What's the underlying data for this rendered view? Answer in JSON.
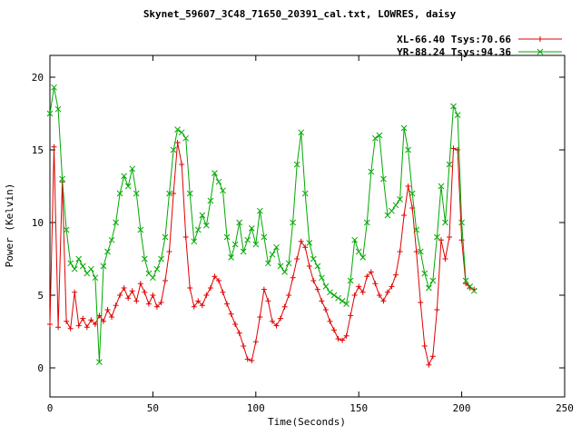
{
  "window": {
    "background": "#ffffff"
  },
  "chart_data": {
    "type": "line",
    "title": "Skynet_59607_3C48_71650_20391_cal.txt, LOWRES, daisy",
    "xlabel": "Time(Seconds)",
    "ylabel": "Power (Kelvin)",
    "xlim": [
      0,
      250
    ],
    "ylim": [
      -2,
      21.5
    ],
    "xticks": [
      0,
      50,
      100,
      150,
      200,
      250
    ],
    "yticks": [
      0,
      5,
      10,
      15,
      20
    ],
    "grid": false,
    "legend_position": "top-right-outside",
    "x": [
      0,
      2,
      4,
      6,
      8,
      10,
      12,
      14,
      16,
      18,
      20,
      22,
      24,
      26,
      28,
      30,
      32,
      34,
      36,
      38,
      40,
      42,
      44,
      46,
      48,
      50,
      52,
      54,
      56,
      58,
      60,
      62,
      64,
      66,
      68,
      70,
      72,
      74,
      76,
      78,
      80,
      82,
      84,
      86,
      88,
      90,
      92,
      94,
      96,
      98,
      100,
      102,
      104,
      106,
      108,
      110,
      112,
      114,
      116,
      118,
      120,
      122,
      124,
      126,
      128,
      130,
      132,
      134,
      136,
      138,
      140,
      142,
      144,
      146,
      148,
      150,
      152,
      154,
      156,
      158,
      160,
      162,
      164,
      166,
      168,
      170,
      172,
      174,
      176,
      178,
      180,
      182,
      184,
      186,
      188,
      190,
      192,
      194,
      196,
      198,
      200,
      202,
      204,
      206
    ],
    "series": [
      {
        "name": "XL-66.40 Tsys:70.66",
        "color": "#e00000",
        "marker": "plus",
        "values": [
          3.0,
          15.2,
          2.8,
          12.8,
          3.2,
          2.7,
          5.2,
          2.9,
          3.4,
          2.8,
          3.3,
          3.0,
          3.6,
          3.2,
          4.0,
          3.5,
          4.3,
          5.0,
          5.5,
          4.8,
          5.3,
          4.6,
          5.8,
          5.2,
          4.4,
          5.0,
          4.2,
          4.5,
          6.0,
          8.0,
          12.0,
          15.5,
          14.0,
          9.0,
          5.5,
          4.2,
          4.6,
          4.3,
          5.0,
          5.5,
          6.3,
          6.0,
          5.2,
          4.4,
          3.7,
          3.0,
          2.4,
          1.5,
          0.6,
          0.5,
          1.8,
          3.5,
          5.4,
          4.6,
          3.2,
          2.9,
          3.4,
          4.2,
          5.0,
          6.2,
          7.5,
          8.7,
          8.3,
          7.0,
          6.0,
          5.4,
          4.6,
          4.0,
          3.2,
          2.6,
          2.0,
          1.9,
          2.2,
          3.6,
          5.0,
          5.6,
          5.2,
          6.3,
          6.6,
          5.8,
          5.0,
          4.6,
          5.2,
          5.6,
          6.4,
          8.0,
          10.5,
          12.5,
          11.0,
          8.0,
          4.5,
          1.5,
          0.2,
          0.8,
          4.0,
          8.8,
          7.5,
          9.0,
          15.1,
          15.0,
          8.8,
          5.8,
          5.5,
          5.4
        ]
      },
      {
        "name": "YR-88.24 Tsys:94.36",
        "color": "#00a800",
        "marker": "cross",
        "values": [
          17.5,
          19.3,
          17.8,
          13.0,
          9.5,
          7.2,
          6.8,
          7.5,
          7.0,
          6.5,
          6.8,
          6.2,
          0.4,
          7.0,
          8.0,
          8.8,
          10.0,
          12.0,
          13.2,
          12.5,
          13.7,
          12.0,
          9.5,
          7.5,
          6.5,
          6.2,
          6.8,
          7.5,
          9.0,
          12.0,
          15.0,
          16.4,
          16.2,
          15.8,
          12.0,
          8.7,
          9.5,
          10.5,
          9.8,
          11.5,
          13.4,
          12.8,
          12.2,
          9.0,
          7.6,
          8.5,
          10.0,
          8.0,
          8.8,
          9.6,
          8.5,
          10.8,
          9.0,
          7.2,
          7.8,
          8.3,
          7.0,
          6.6,
          7.2,
          10.0,
          14.0,
          16.2,
          12.0,
          8.6,
          7.5,
          7.0,
          6.2,
          5.6,
          5.2,
          5.0,
          4.8,
          4.6,
          4.4,
          6.0,
          8.8,
          8.0,
          7.6,
          10.0,
          13.5,
          15.8,
          16.0,
          13.0,
          10.5,
          10.8,
          11.2,
          11.6,
          16.5,
          15.0,
          12.0,
          9.5,
          8.0,
          6.5,
          5.5,
          6.0,
          9.0,
          12.5,
          10.0,
          14.0,
          18.0,
          17.4,
          10.0,
          6.0,
          5.6,
          5.3
        ]
      }
    ]
  }
}
